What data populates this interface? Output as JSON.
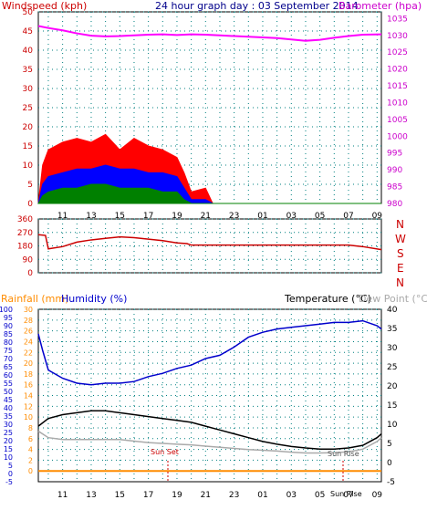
{
  "colors": {
    "wind_max": "#ff0000",
    "wind_avg": "#0000ff",
    "wind_min": "#008000",
    "baro": "#ff00ff",
    "dir": "#cc0000",
    "rain": "#ff8c00",
    "humidity": "#0000cc",
    "temperature": "#000000",
    "dewpoint": "#aaaaaa",
    "axis_left_top": "#cc0000",
    "axis_right_top": "#cc00cc",
    "axis_left_bottom": "#cc0000",
    "axis_mid_bottom": "#ff8c00",
    "axis_right_bottom": "#000000",
    "grid": "#008080",
    "frame": "#000000",
    "sun_marker": "#cc0000"
  },
  "header": {
    "windspeed_label": "Windspeed (kph)",
    "title": "24 hour graph day : 03 September 2014",
    "barometer_label": "Barometer (hpa)"
  },
  "bottom_header": {
    "rainfall_label": "Rainfall (mm)",
    "humidity_label": "Humidity (%)",
    "temperature_label": "Temperature (°C)",
    "dewpoint_label": "Dew Point (°C)"
  },
  "x_ticks": [
    "11",
    "13",
    "15",
    "17",
    "19",
    "21",
    "23",
    "01",
    "03",
    "05",
    "07",
    "09"
  ],
  "direction_labels": [
    "N",
    "W",
    "S",
    "E",
    "N"
  ],
  "annotations": {
    "sun_set": "Sun Set",
    "sun_rise": "Sun Rise",
    "sun_rise_tick": "Sun Rise"
  },
  "chart_data": [
    {
      "type": "line",
      "y_left": {
        "ticks": [
          0,
          5,
          10,
          15,
          20,
          25,
          30,
          35,
          40,
          45,
          50
        ],
        "range": [
          0,
          50
        ]
      },
      "y_right": {
        "ticks": [
          980,
          985,
          990,
          995,
          1000,
          1005,
          1010,
          1015,
          1020,
          1025,
          1030,
          1035
        ],
        "range": [
          980,
          1037
        ]
      },
      "x_range_hours": [
        9.3,
        33.3
      ],
      "series": [
        {
          "name": "Barometer (hpa)",
          "points": [
            [
              9.3,
              1032.8
            ],
            [
              10,
              1032.2
            ],
            [
              11,
              1031.5
            ],
            [
              12,
              1030.6
            ],
            [
              13,
              1029.9
            ],
            [
              14,
              1029.7
            ],
            [
              15,
              1029.8
            ],
            [
              16,
              1030
            ],
            [
              17,
              1030.2
            ],
            [
              18,
              1030.3
            ],
            [
              19,
              1030.1
            ],
            [
              20,
              1030.3
            ],
            [
              21,
              1030.2
            ],
            [
              22,
              1030
            ],
            [
              23,
              1029.8
            ],
            [
              24,
              1029.6
            ],
            [
              25,
              1029.4
            ],
            [
              26,
              1029.2
            ],
            [
              27,
              1028.8
            ],
            [
              28,
              1028.4
            ],
            [
              29,
              1028.7
            ],
            [
              30,
              1029.3
            ],
            [
              31,
              1029.8
            ],
            [
              32,
              1030.2
            ],
            [
              33.3,
              1030.3
            ]
          ]
        },
        {
          "points": [
            [
              9.3,
              0
            ],
            [
              9.6,
              10
            ],
            [
              10,
              14
            ],
            [
              11,
              16
            ],
            [
              12,
              17
            ],
            [
              13,
              16
            ],
            [
              14,
              18
            ],
            [
              15,
              14
            ],
            [
              16,
              17
            ],
            [
              17,
              15
            ],
            [
              18,
              14
            ],
            [
              19,
              12
            ],
            [
              19.5,
              8
            ],
            [
              20,
              3
            ],
            [
              21,
              4
            ],
            [
              21.5,
              0
            ],
            [
              33.3,
              0
            ]
          ]
        },
        {
          "points": [
            [
              9.3,
              0
            ],
            [
              9.6,
              5
            ],
            [
              10,
              7
            ],
            [
              11,
              8
            ],
            [
              12,
              9
            ],
            [
              13,
              9
            ],
            [
              14,
              10
            ],
            [
              15,
              9
            ],
            [
              16,
              9
            ],
            [
              17,
              8
            ],
            [
              18,
              8
            ],
            [
              19,
              7
            ],
            [
              19.5,
              4
            ],
            [
              20,
              1
            ],
            [
              21,
              1
            ],
            [
              21.5,
              0
            ],
            [
              33.3,
              0
            ]
          ]
        },
        {
          "points": [
            [
              9.3,
              0
            ],
            [
              9.6,
              2
            ],
            [
              10,
              3
            ],
            [
              11,
              4
            ],
            [
              12,
              4
            ],
            [
              13,
              5
            ],
            [
              14,
              5
            ],
            [
              15,
              4
            ],
            [
              16,
              4
            ],
            [
              17,
              4
            ],
            [
              18,
              3
            ],
            [
              19,
              3
            ],
            [
              19.5,
              1
            ],
            [
              20,
              0
            ],
            [
              33.3,
              0
            ]
          ]
        }
      ]
    },
    {
      "type": "line",
      "y_left": {
        "ticks": [
          0,
          90,
          180,
          270,
          360
        ],
        "range": [
          0,
          360
        ]
      },
      "series": [
        {
          "points": [
            [
              9.3,
              255
            ],
            [
              9.8,
              250
            ],
            [
              10,
              160
            ],
            [
              11,
              175
            ],
            [
              12,
              205
            ],
            [
              13,
              220
            ],
            [
              14,
              230
            ],
            [
              15,
              240
            ],
            [
              16,
              235
            ],
            [
              17,
              225
            ],
            [
              18,
              215
            ],
            [
              19,
              200
            ],
            [
              19.7,
              195
            ],
            [
              20,
              185
            ],
            [
              24,
              185
            ],
            [
              28,
              185
            ],
            [
              30,
              185
            ],
            [
              31,
              185
            ],
            [
              32,
              175
            ],
            [
              33.3,
              155
            ]
          ]
        }
      ]
    },
    {
      "type": "line",
      "y_humidity": {
        "ticks": [
          -5,
          0,
          5,
          10,
          15,
          20,
          25,
          30,
          35,
          40,
          45,
          50,
          55,
          60,
          65,
          70,
          75,
          80,
          85,
          90,
          95,
          100
        ],
        "range": [
          -5,
          100
        ]
      },
      "y_rain": {
        "ticks": [
          0,
          2,
          4,
          6,
          8,
          10,
          12,
          14,
          16,
          18,
          20,
          22,
          24,
          26,
          28,
          30
        ],
        "range": [
          -2,
          30
        ]
      },
      "y_temp": {
        "ticks": [
          -5,
          0,
          5,
          10,
          15,
          20,
          25,
          30,
          35,
          40
        ],
        "range": [
          -5,
          40
        ]
      },
      "series": [
        {
          "name": "Humidity (%)",
          "axis": "humidity",
          "points": [
            [
              9.3,
              85
            ],
            [
              9.6,
              75
            ],
            [
              10,
              63
            ],
            [
              11,
              58
            ],
            [
              12,
              55
            ],
            [
              13,
              54
            ],
            [
              14,
              55
            ],
            [
              15,
              55
            ],
            [
              16,
              56
            ],
            [
              17,
              59
            ],
            [
              18,
              61
            ],
            [
              19,
              64
            ],
            [
              20,
              66
            ],
            [
              21,
              70
            ],
            [
              22,
              72
            ],
            [
              23,
              77
            ],
            [
              24,
              83
            ],
            [
              25,
              86
            ],
            [
              26,
              88
            ],
            [
              27,
              89
            ],
            [
              28,
              90
            ],
            [
              29,
              91
            ],
            [
              30,
              92
            ],
            [
              31,
              92
            ],
            [
              32,
              93
            ],
            [
              33,
              90
            ],
            [
              33.3,
              88
            ]
          ]
        },
        {
          "name": "Temperature (°C)",
          "axis": "temp",
          "points": [
            [
              9.3,
              9.5
            ],
            [
              10,
              11.5
            ],
            [
              11,
              12.5
            ],
            [
              12,
              13
            ],
            [
              13,
              13.5
            ],
            [
              14,
              13.5
            ],
            [
              15,
              13
            ],
            [
              16,
              12.5
            ],
            [
              17,
              12
            ],
            [
              18,
              11.5
            ],
            [
              19,
              11
            ],
            [
              20,
              10.5
            ],
            [
              21,
              9.5
            ],
            [
              22,
              8.5
            ],
            [
              23,
              7.5
            ],
            [
              24,
              6.5
            ],
            [
              25,
              5.5
            ],
            [
              26,
              4.8
            ],
            [
              27,
              4.2
            ],
            [
              28,
              3.8
            ],
            [
              29,
              3.5
            ],
            [
              30,
              3.5
            ],
            [
              31,
              3.8
            ],
            [
              32,
              4.5
            ],
            [
              33,
              6.5
            ],
            [
              33.3,
              7.5
            ]
          ]
        },
        {
          "name": "Dew Point (°C)",
          "axis": "temp",
          "points": [
            [
              9.3,
              8.2
            ],
            [
              10,
              6.5
            ],
            [
              11,
              6
            ],
            [
              12,
              6
            ],
            [
              13,
              6
            ],
            [
              14,
              6
            ],
            [
              15,
              6
            ],
            [
              16,
              5.6
            ],
            [
              17,
              5.2
            ],
            [
              18,
              5
            ],
            [
              19,
              4.8
            ],
            [
              20,
              4.6
            ],
            [
              21,
              4.3
            ],
            [
              22,
              4
            ],
            [
              23,
              3.7
            ],
            [
              24,
              3.4
            ],
            [
              25,
              3.2
            ],
            [
              26,
              3
            ],
            [
              27,
              2.7
            ],
            [
              28,
              2.5
            ],
            [
              29,
              2.5
            ],
            [
              30,
              2.6
            ],
            [
              31,
              2.8
            ],
            [
              32,
              3.5
            ],
            [
              33,
              5.5
            ],
            [
              33.3,
              6.5
            ]
          ]
        },
        {
          "name": "Rainfall (mm)",
          "axis": "rain",
          "points": [
            [
              9.3,
              0
            ],
            [
              33.3,
              0
            ]
          ]
        }
      ]
    }
  ]
}
